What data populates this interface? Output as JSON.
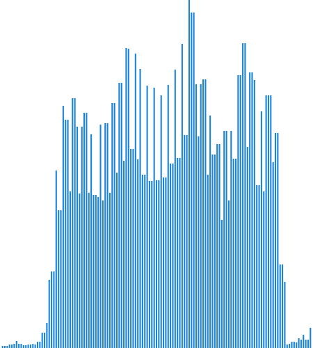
{
  "chart_data": {
    "type": "bar",
    "title": "",
    "xlabel": "",
    "ylabel": "",
    "grid": false,
    "legend": false,
    "ylim": [
      0,
      100
    ],
    "bar_color": "#1a82d8",
    "series": [
      {
        "values": [
          0.6,
          0.6,
          0.6,
          1.0,
          1.0,
          1.2,
          2.0,
          1.2,
          1.2,
          0.8,
          0.8,
          1.0,
          1.0,
          1.2,
          1.0,
          1.8,
          1.8,
          4.4,
          4.4,
          7.2,
          19.6,
          22.0,
          22.0,
          51.0,
          39.6,
          39.6,
          69.6,
          65.6,
          65.6,
          45.0,
          71.8,
          71.8,
          63.6,
          44.4,
          63.6,
          67.6,
          67.6,
          44.6,
          61.4,
          44.0,
          44.0,
          43.4,
          64.2,
          42.4,
          64.6,
          64.6,
          44.6,
          70.4,
          70.4,
          50.4,
          76.2,
          76.2,
          53.8,
          86.2,
          86.0,
          57.2,
          57.2,
          84.6,
          54.2,
          80.2,
          49.8,
          49.8,
          75.4,
          48.0,
          48.0,
          74.8,
          48.2,
          48.2,
          72.6,
          49.0,
          49.0,
          75.6,
          53.0,
          53.0,
          80.0,
          54.6,
          54.6,
          87.4,
          61.2,
          61.2,
          100.0,
          96.4,
          96.4,
          75.8,
          60.8,
          75.8,
          77.2,
          77.2,
          49.8,
          66.8,
          55.6,
          55.6,
          58.6,
          58.6,
          36.8,
          62.4,
          62.4,
          42.4,
          62.4,
          54.4,
          54.4,
          78.4,
          78.4,
          87.6,
          87.6,
          57.8,
          79.2,
          79.2,
          77.0,
          46.8,
          46.8,
          68.0,
          45.0,
          72.6,
          72.6,
          72.6,
          53.4,
          61.8,
          61.8,
          24.0,
          24.0,
          19.0,
          1.0,
          1.2,
          1.8,
          1.8,
          1.6,
          2.8,
          2.4,
          3.8,
          2.4,
          2.4,
          5.8
        ]
      }
    ]
  }
}
